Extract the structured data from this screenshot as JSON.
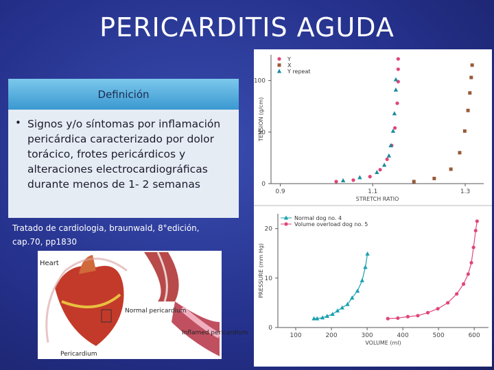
{
  "title": "PERICARDITIS AGUDA",
  "definition": {
    "header": "Definición",
    "bullet": "Signos y/o síntomas por inflamación pericárdica caracterizado por dolor torácico, frotes pericárdicos y alteraciones electrocardiográficas durante menos de 1- 2 semanas"
  },
  "citation": "Tratado de cardiologia, braunwald, 8°edición, cap.70, pp1830",
  "illustration": {
    "labels": [
      "Heart",
      "Normal pericardium",
      "Inflamed pericardium",
      "Pericardium"
    ]
  },
  "chart_data": [
    {
      "type": "scatter",
      "xlabel": "STRETCH RATIO",
      "ylabel": "TENSION (g/cm)",
      "xlim": [
        0.88,
        1.34
      ],
      "ylim": [
        0,
        125
      ],
      "xticks": [
        0.9,
        1.1,
        1.3
      ],
      "yticks": [
        0,
        50,
        100
      ],
      "legend": "top-left",
      "series": [
        {
          "name": "Y",
          "color": "#e0457a",
          "marker": "circle",
          "x": [
            1.021,
            1.058,
            1.094,
            1.116,
            1.131,
            1.141,
            1.148,
            1.153,
            1.155,
            1.155,
            1.155
          ],
          "y": [
            2,
            3.4,
            6.8,
            13.5,
            23.6,
            37,
            54,
            78,
            99,
            111,
            121
          ]
        },
        {
          "name": "X",
          "color": "#9a5a3a",
          "marker": "square",
          "x": [
            1.189,
            1.233,
            1.269,
            1.288,
            1.299,
            1.306,
            1.31,
            1.313,
            1.315
          ],
          "y": [
            2,
            5,
            14,
            30,
            51,
            71,
            88,
            103,
            115
          ]
        },
        {
          "name": "Y repeat",
          "color": "#1a8aa0",
          "marker": "triangle",
          "x": [
            1.036,
            1.072,
            1.109,
            1.125,
            1.135,
            1.139,
            1.144,
            1.147,
            1.15,
            1.15
          ],
          "y": [
            3,
            6,
            11,
            18,
            27,
            37,
            51,
            68,
            91,
            101
          ]
        }
      ]
    },
    {
      "type": "line",
      "xlabel": "VOLUME (ml)",
      "ylabel": "PRESSURE (mm Hg)",
      "xlim": [
        50,
        640
      ],
      "ylim": [
        0,
        23
      ],
      "xticks": [
        100,
        200,
        300,
        400,
        500,
        600
      ],
      "yticks": [
        0,
        10,
        20
      ],
      "legend": "top-left",
      "series": [
        {
          "name": "Normal dog no. 4",
          "color": "#1aa0b0",
          "marker": "triangle",
          "x": [
            151,
            160,
            175,
            188,
            203,
            217,
            230,
            245,
            258,
            273,
            286,
            295,
            301
          ],
          "y": [
            1.8,
            1.8,
            2,
            2.3,
            2.7,
            3.4,
            4,
            4.7,
            6,
            7.4,
            9.5,
            12.2,
            14.9
          ]
        },
        {
          "name": "Volume overload dog no. 5",
          "color": "#e0457a",
          "marker": "circle",
          "x": [
            358,
            386,
            414,
            442,
            470,
            498,
            526,
            551,
            570,
            583,
            592,
            598,
            604,
            608
          ],
          "y": [
            1.8,
            1.9,
            2.2,
            2.4,
            3,
            3.8,
            5,
            6.8,
            8.8,
            10.8,
            13.1,
            16.2,
            19.6,
            21.5
          ]
        }
      ]
    }
  ]
}
